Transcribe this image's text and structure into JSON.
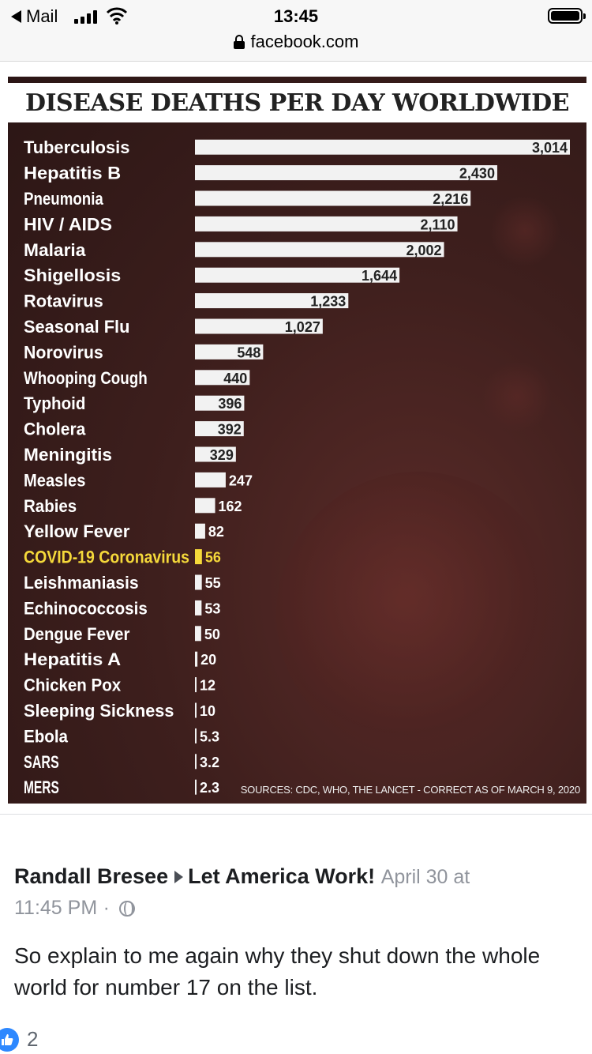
{
  "status_bar": {
    "back_label": "Mail",
    "time": "13:45",
    "url": "facebook.com"
  },
  "chart_data": {
    "type": "bar",
    "orientation": "horizontal",
    "title": "DISEASE DEATHS PER DAY WORLDWIDE",
    "categories": [
      "Tuberculosis",
      "Hepatitis B",
      "Pneumonia",
      "HIV / AIDS",
      "Malaria",
      "Shigellosis",
      "Rotavirus",
      "Seasonal Flu",
      "Norovirus",
      "Whooping Cough",
      "Typhoid",
      "Cholera",
      "Meningitis",
      "Measles",
      "Rabies",
      "Yellow Fever",
      "COVID-19 Coronavirus",
      "Leishmaniasis",
      "Echinococcosis",
      "Dengue Fever",
      "Hepatitis A",
      "Chicken Pox",
      "Sleeping Sickness",
      "Ebola",
      "SARS",
      "MERS"
    ],
    "values": [
      3014,
      2430,
      2216,
      2110,
      2002,
      1644,
      1233,
      1027,
      548,
      440,
      396,
      392,
      329,
      247,
      162,
      82,
      56,
      55,
      53,
      50,
      20,
      12,
      10,
      5.3,
      3.2,
      2.3
    ],
    "value_labels": [
      "3,014",
      "2,430",
      "2,216",
      "2,110",
      "2,002",
      "1,644",
      "1,233",
      "1,027",
      "548",
      "440",
      "396",
      "392",
      "329",
      "247",
      "162",
      "82",
      "56",
      "55",
      "53",
      "50",
      "20",
      "12",
      "10",
      "5.3",
      "3.2",
      "2.3"
    ],
    "highlight_index": 16,
    "highlight_color": "#f5d93a",
    "bar_color": "#f2f2f2",
    "source": "SOURCES: CDC, WHO, THE LANCET - CORRECT AS OF MARCH 9, 2020"
  },
  "post": {
    "author": "Randall Bresee",
    "group": "Let America Work!",
    "date": "April 30 at",
    "time": "11:45 PM",
    "dot": "·",
    "text": "So explain to me again why they shut down the whole world for number 17 on the list.",
    "likes": "2"
  }
}
